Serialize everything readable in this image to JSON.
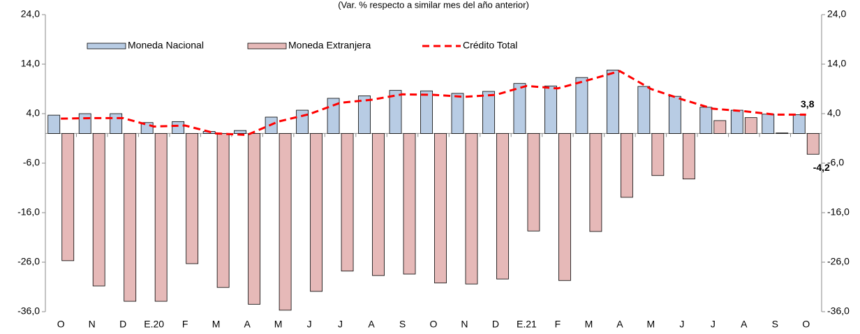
{
  "chart_data": {
    "type": "bar",
    "title": "(Var. % respecto a similar mes del año anterior)",
    "categories": [
      "O",
      "N",
      "D",
      "E.20",
      "F",
      "M",
      "A",
      "M",
      "J",
      "J",
      "A",
      "S",
      "O",
      "N",
      "D",
      "E.21",
      "F",
      "M",
      "A",
      "M",
      "J",
      "J",
      "A",
      "S",
      "O"
    ],
    "series": [
      {
        "name": "Moneda Nacional",
        "type": "bar",
        "color": "#b8cce4",
        "values": [
          3.7,
          4.0,
          4.0,
          2.2,
          2.4,
          0.4,
          0.6,
          3.3,
          4.7,
          7.1,
          7.6,
          8.7,
          8.6,
          8.1,
          8.5,
          10.1,
          9.6,
          11.3,
          12.8,
          9.5,
          7.5,
          5.3,
          4.7,
          3.9,
          3.8
        ],
        "value_labels": [
          null,
          null,
          null,
          null,
          null,
          null,
          null,
          null,
          null,
          null,
          null,
          null,
          null,
          null,
          null,
          null,
          null,
          null,
          null,
          null,
          null,
          null,
          null,
          null,
          "3,8"
        ]
      },
      {
        "name": "Moneda Extranjera",
        "type": "bar",
        "color": "#e6b9b8",
        "values": [
          -25.7,
          -30.8,
          -33.9,
          -33.9,
          -26.3,
          -31.1,
          -34.5,
          -35.7,
          -31.9,
          -27.8,
          -28.7,
          -28.4,
          -30.2,
          -30.4,
          -29.4,
          -19.7,
          -29.7,
          -19.8,
          -12.9,
          -8.5,
          -9.2,
          2.6,
          3.2,
          0.1,
          -4.2
        ],
        "value_labels": [
          null,
          null,
          null,
          null,
          null,
          null,
          null,
          null,
          null,
          null,
          null,
          null,
          null,
          null,
          null,
          null,
          null,
          null,
          null,
          null,
          null,
          null,
          null,
          null,
          "-4,2"
        ]
      },
      {
        "name": "Crédito Total",
        "type": "line",
        "color": "#ff0000",
        "values": [
          3.0,
          3.1,
          3.1,
          1.4,
          1.6,
          0.0,
          -0.3,
          2.4,
          3.9,
          6.2,
          6.8,
          7.9,
          7.8,
          7.4,
          7.8,
          9.6,
          9.1,
          10.8,
          12.6,
          9.0,
          6.9,
          5.0,
          4.5,
          3.8,
          3.8
        ]
      }
    ],
    "ylim": [
      -36,
      24
    ],
    "yticks": [
      {
        "value": 24,
        "label": "24,0"
      },
      {
        "value": 14,
        "label": "14,0"
      },
      {
        "value": 4,
        "label": "4,0"
      },
      {
        "value": -6,
        "label": "-6,0"
      },
      {
        "value": -16,
        "label": "-16,0"
      },
      {
        "value": -26,
        "label": "-26,0"
      },
      {
        "value": -36,
        "label": "-36,0"
      }
    ],
    "y2lim": [
      -36,
      24
    ],
    "y2ticks": [
      {
        "value": 24,
        "label": "24,0"
      },
      {
        "value": 14,
        "label": "14,0"
      },
      {
        "value": 4,
        "label": "4,0"
      },
      {
        "value": -6,
        "label": "-6,0"
      },
      {
        "value": -16,
        "label": "-16,0"
      },
      {
        "value": -26,
        "label": "-26,0"
      },
      {
        "value": -36,
        "label": "-36,0"
      }
    ],
    "legend": "top-left"
  }
}
